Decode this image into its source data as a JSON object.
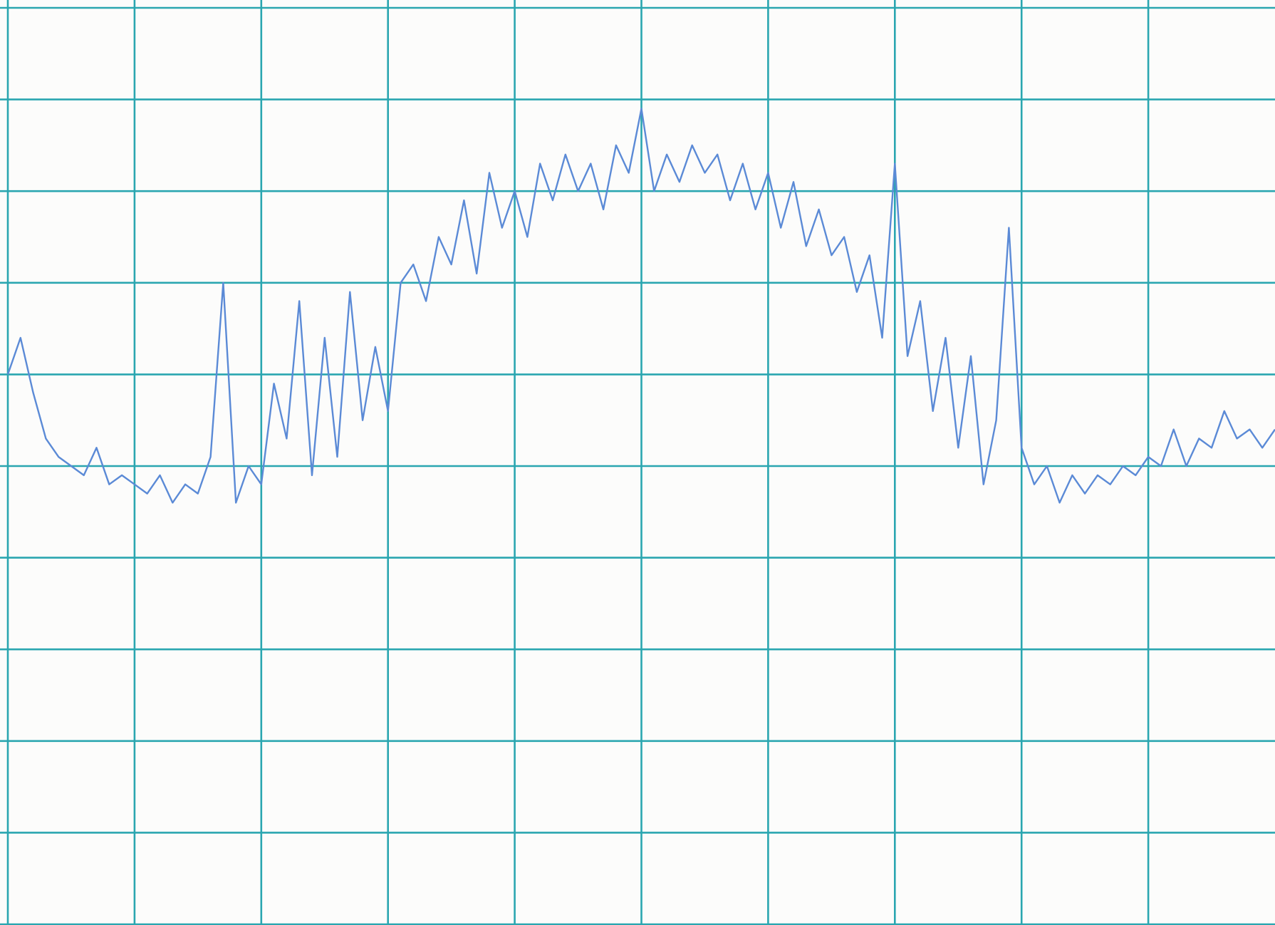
{
  "chart_data": {
    "type": "line",
    "x": [
      0,
      0.1,
      0.2,
      0.3,
      0.4,
      0.5,
      0.6,
      0.7,
      0.8,
      0.9,
      1,
      1.1,
      1.2,
      1.3,
      1.4,
      1.5,
      1.6,
      1.7,
      1.8,
      1.9,
      2,
      2.1,
      2.2,
      2.3,
      2.4,
      2.5,
      2.6,
      2.7,
      2.8,
      2.9,
      3,
      3.1,
      3.2,
      3.3,
      3.4,
      3.5,
      3.6,
      3.7,
      3.8,
      3.9,
      4,
      4.1,
      4.2,
      4.3,
      4.4,
      4.5,
      4.6,
      4.7,
      4.8,
      4.9,
      5,
      5.1,
      5.2,
      5.3,
      5.4,
      5.5,
      5.6,
      5.7,
      5.8,
      5.9,
      6,
      6.1,
      6.2,
      6.3,
      6.4,
      6.5,
      6.6,
      6.7,
      6.8,
      6.9,
      7,
      7.1,
      7.2,
      7.3,
      7.4,
      7.5,
      7.6,
      7.7,
      7.8,
      7.9,
      8,
      8.1,
      8.2,
      8.3,
      8.4,
      8.5,
      8.6,
      8.7,
      8.8,
      8.9,
      9,
      9.1,
      9.2,
      9.3,
      9.4,
      9.5,
      9.6,
      9.7,
      9.8,
      9.9,
      10
    ],
    "series": [
      {
        "color": "#5b8ad6",
        "values": [
          6.0,
          6.4,
          5.8,
          5.3,
          5.1,
          5.0,
          4.9,
          5.2,
          4.8,
          4.9,
          4.8,
          4.7,
          4.9,
          4.6,
          4.8,
          4.7,
          5.1,
          7.0,
          4.6,
          5.0,
          4.8,
          5.9,
          5.3,
          6.8,
          4.9,
          6.4,
          5.1,
          6.9,
          5.5,
          6.3,
          5.6,
          7.0,
          7.2,
          6.8,
          7.5,
          7.2,
          7.9,
          7.1,
          8.2,
          7.6,
          8.0,
          7.5,
          8.3,
          7.9,
          8.4,
          8.0,
          8.3,
          7.8,
          8.5,
          8.2,
          8.9,
          8.0,
          8.4,
          8.1,
          8.5,
          8.2,
          8.4,
          7.9,
          8.3,
          7.8,
          8.2,
          7.6,
          8.1,
          7.4,
          7.8,
          7.3,
          7.5,
          6.9,
          7.3,
          6.4,
          8.3,
          6.2,
          6.8,
          5.6,
          6.4,
          5.2,
          6.2,
          4.8,
          5.5,
          7.6,
          5.2,
          4.8,
          5.0,
          4.6,
          4.9,
          4.7,
          4.9,
          4.8,
          5.0,
          4.9,
          5.1,
          5.0,
          5.4,
          5.0,
          5.3,
          5.2,
          5.6,
          5.3,
          5.4,
          5.2,
          5.4
        ]
      }
    ],
    "xlim": [
      0,
      10
    ],
    "xticks": [
      0,
      1,
      2,
      3,
      4,
      5,
      6,
      7,
      8,
      9
    ],
    "ylim": [
      0,
      10
    ],
    "yticks": [
      0,
      1,
      2,
      3,
      4,
      5,
      6,
      7,
      8,
      9,
      10
    ],
    "grid": true,
    "grid_color": "#2aa6b0"
  }
}
